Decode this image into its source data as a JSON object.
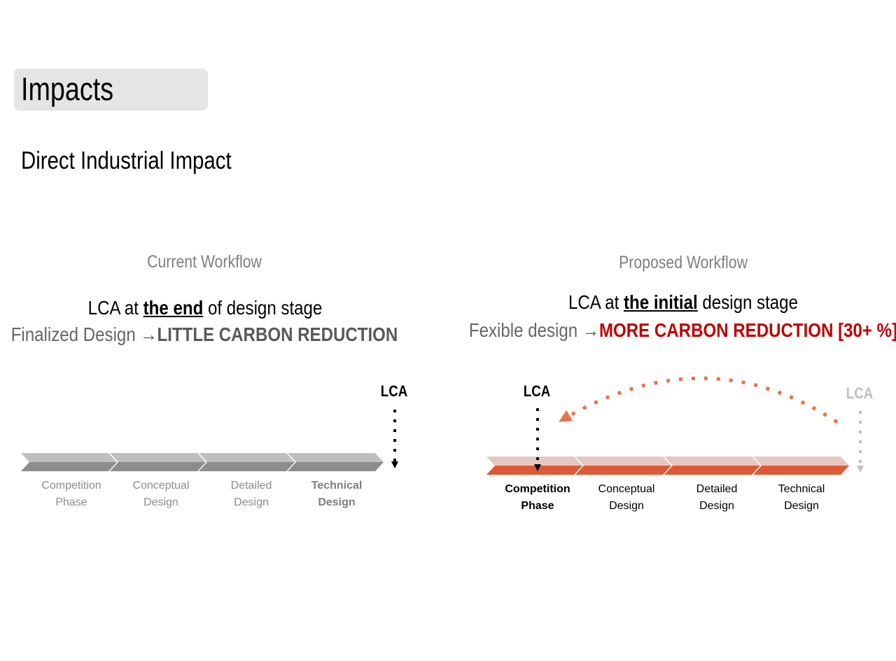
{
  "title": "Impacts",
  "subtitle": "Direct Industrial Impact",
  "current": {
    "label": "Current Workflow",
    "headline_pre": "LCA at ",
    "headline_em": "the end",
    "headline_post": " of design stage",
    "effect_lead": "Finalized Design ",
    "effect_arrow": "→",
    "effect_result": "LITTLE CARBON REDUCTION",
    "lca": "LCA",
    "phases": [
      {
        "line1": "Competition",
        "line2": "Phase"
      },
      {
        "line1": "Conceptual",
        "line2": "Design"
      },
      {
        "line1": "Detailed",
        "line2": "Design"
      },
      {
        "line1": "Technical",
        "line2": "Design"
      }
    ]
  },
  "proposed": {
    "label": "Proposed Workflow",
    "headline_pre": "LCA at ",
    "headline_em": "the initial",
    "headline_post": " design stage",
    "effect_lead": "Fexible design ",
    "effect_arrow": "→",
    "effect_result": "MORE CARBON REDUCTION [30+ %]",
    "lca_active": "LCA",
    "lca_faded": "LCA",
    "phases": [
      {
        "line1": "Competition",
        "line2": "Phase"
      },
      {
        "line1": "Conceptual",
        "line2": "Design"
      },
      {
        "line1": "Detailed",
        "line2": "Design"
      },
      {
        "line1": "Technical",
        "line2": "Design"
      }
    ]
  },
  "colors": {
    "grey_top": "#bfbfbf",
    "grey_bottom": "#8c8c8c",
    "orange_top": "#e4c8c0",
    "orange_bottom": "#dd5a36",
    "orange_arrow": "#e9734a",
    "red_text": "#c00000"
  }
}
